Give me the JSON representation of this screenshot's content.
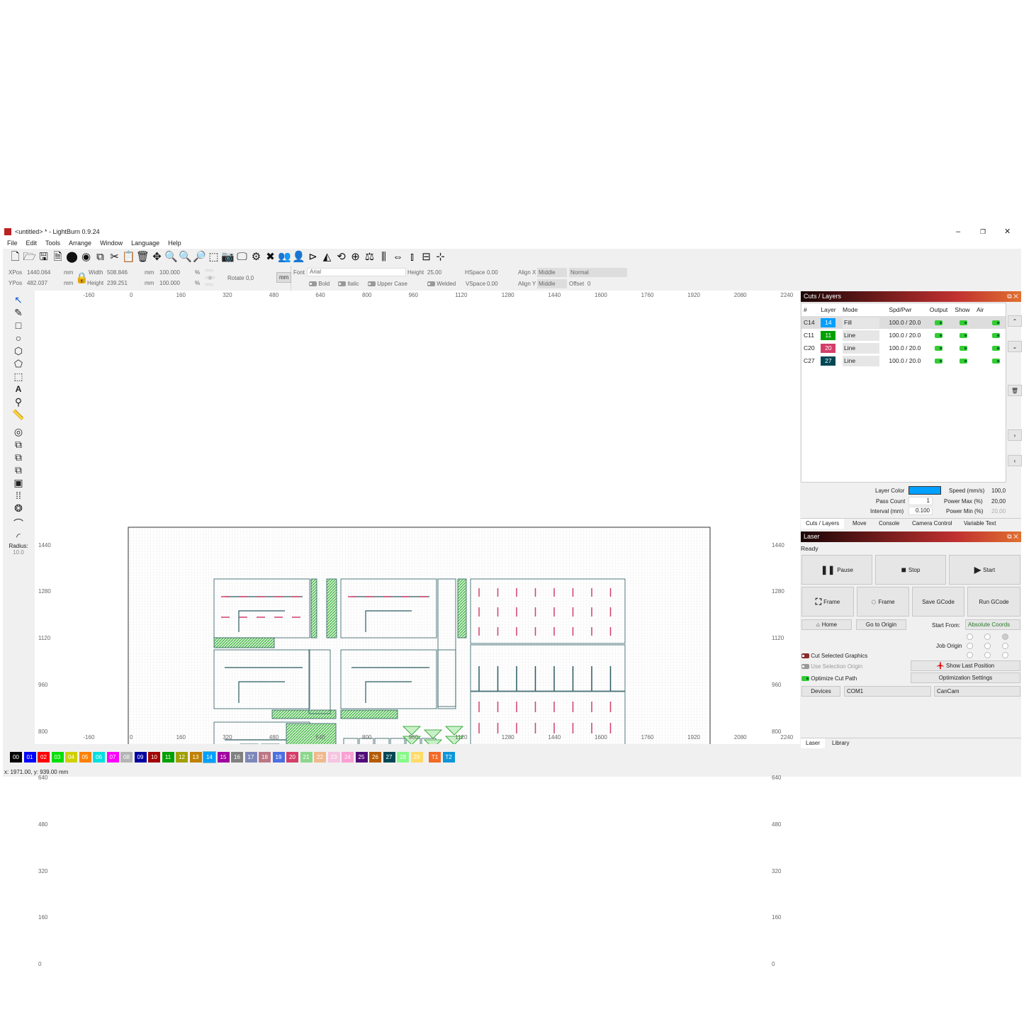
{
  "window": {
    "title": "<untitled> * - LightBurn 0.9.24",
    "min": "–",
    "max": "❐",
    "close": "✕"
  },
  "menu": [
    "File",
    "Edit",
    "Tools",
    "Arrange",
    "Window",
    "Language",
    "Help"
  ],
  "toolbar_icons": [
    "new-file-icon",
    "open-icon",
    "save-icon",
    "save-as-icon",
    "import-icon",
    "export-icon",
    "copy-icon",
    "cut-icon",
    "paste-icon",
    "delete-icon",
    "move-icon",
    "zoom-in-icon",
    "zoom-out-icon",
    "zoom-fit-icon",
    "zoom-selection-icon",
    "camera-icon",
    "monitor-icon",
    "settings-icon",
    "tools-icon",
    "group-icon",
    "ungroup-icon",
    "mirror-h-icon",
    "mirror-v-icon",
    "rotate-icon",
    "align-center-icon",
    "align-bottom-icon",
    "distribute-icon",
    "align-h-icon",
    "align-v-icon",
    "distribute-space-icon",
    "snap-icon"
  ],
  "props": {
    "xpos_label": "XPos",
    "xpos": "1440.064",
    "ypos_label": "YPos",
    "ypos": "482.037",
    "unit": "mm",
    "width_label": "Width",
    "width": "508.846",
    "height_label": "Height",
    "height": "239.251",
    "scale_w": "100.000",
    "scale_h": "100.000",
    "pct": "%",
    "rotate_label": "Rotate",
    "rotate": "0,0",
    "mm_button": "mm",
    "font_label": "Font",
    "font": "Arial",
    "text_height_label": "Height",
    "text_height": "25.00",
    "hspace_label": "HSpace",
    "hspace": "0.00",
    "vspace_label": "VSpace",
    "vspace": "0.00",
    "alignx_label": "Align X",
    "alignx": "Middle",
    "aligny_label": "Align Y",
    "aligny": "Middle",
    "style": "Normal",
    "offset_label": "Offset",
    "offset": "0",
    "bold": "Bold",
    "italic": "Italic",
    "upper": "Upper Case",
    "welded": "Welded"
  },
  "left_tools": {
    "radius_label": "Radius:",
    "radius": "10.0"
  },
  "ruler": {
    "top": [
      "-160",
      "0",
      "160",
      "320",
      "480",
      "640",
      "800",
      "960",
      "1120",
      "1280",
      "1440",
      "1600",
      "1760",
      "1920",
      "2080",
      "2240"
    ],
    "left": [
      "1440",
      "1280",
      "1120",
      "960",
      "800",
      "640",
      "480",
      "320",
      "160",
      "0"
    ]
  },
  "cuts": {
    "title": "Cuts / Layers",
    "headers": [
      "#",
      "Layer",
      "Mode",
      "Spd/Pwr",
      "Output",
      "Show",
      "Air"
    ],
    "rows": [
      {
        "id": "C14",
        "layer": "14",
        "color": "#00a0ff",
        "mode": "Fill",
        "spdpwr": "100.0 / 20.0"
      },
      {
        "id": "C11",
        "layer": "11",
        "color": "#00a000",
        "mode": "Line",
        "spdpwr": "100.0 / 20.0"
      },
      {
        "id": "C20",
        "layer": "20",
        "color": "#d33f6a",
        "mode": "Line",
        "spdpwr": "100.0 / 20.0"
      },
      {
        "id": "C27",
        "layer": "27",
        "color": "#004754",
        "mode": "Line",
        "spdpwr": "100.0 / 20.0"
      }
    ],
    "layer_color_label": "Layer Color",
    "layer_color": "#00a0ff",
    "pass_count_label": "Pass Count",
    "pass_count": "1",
    "interval_label": "Interval (mm)",
    "interval": "0.100",
    "speed_label": "Speed (mm/s)",
    "speed": "100,0",
    "pmax_label": "Power Max (%)",
    "pmax": "20,00",
    "pmin_label": "Power Min (%)",
    "pmin": "20,00",
    "tabs": [
      "Cuts / Layers",
      "Move",
      "Console",
      "Camera Control",
      "Variable Text"
    ]
  },
  "laser": {
    "title": "Laser",
    "status": "Ready",
    "pause": "Pause",
    "stop": "Stop",
    "start": "Start",
    "frame1": "Frame",
    "frame2": "Frame",
    "save_gcode": "Save GCode",
    "run_gcode": "Run GCode",
    "home": "Home",
    "go_origin": "Go to Origin",
    "start_from_label": "Start From:",
    "start_from": "Absolute Coords",
    "job_origin_label": "Job Origin",
    "cut_selected": "Cut Selected Graphics",
    "use_selection": "Use Selection Origin",
    "optimize": "Optimize Cut Path",
    "show_last": "Show Last Position",
    "opt_settings": "Optimization Settings",
    "devices": "Devices",
    "port": "COM1",
    "device": "CanCam",
    "tabs": [
      "Laser",
      "Library"
    ]
  },
  "palette": [
    [
      "00",
      "#000000"
    ],
    [
      "01",
      "#0000ff"
    ],
    [
      "02",
      "#ff0000"
    ],
    [
      "03",
      "#00e000"
    ],
    [
      "04",
      "#d0d000"
    ],
    [
      "05",
      "#ff8000"
    ],
    [
      "06",
      "#00e0e0"
    ],
    [
      "07",
      "#ff00ff"
    ],
    [
      "08",
      "#b4b4b4"
    ],
    [
      "09",
      "#0000a0"
    ],
    [
      "10",
      "#a00000"
    ],
    [
      "11",
      "#00a000"
    ],
    [
      "12",
      "#a0a000"
    ],
    [
      "13",
      "#c08000"
    ],
    [
      "14",
      "#00a0ff"
    ],
    [
      "15",
      "#a000a0"
    ],
    [
      "16",
      "#808080"
    ],
    [
      "17",
      "#7d87b9"
    ],
    [
      "18",
      "#bb7784"
    ],
    [
      "19",
      "#4a6fe3"
    ],
    [
      "20",
      "#d33f6a"
    ],
    [
      "21",
      "#8cd78c"
    ],
    [
      "22",
      "#f0b98d"
    ],
    [
      "23",
      "#f6c4e1"
    ],
    [
      "24",
      "#fa9ed4"
    ],
    [
      "25",
      "#500a78"
    ],
    [
      "26",
      "#b45a00"
    ],
    [
      "27",
      "#004754"
    ],
    [
      "28",
      "#86fa88"
    ],
    [
      "29",
      "#ffdb66"
    ],
    [
      "T1",
      "#f36926"
    ],
    [
      "T2",
      "#0c96d9"
    ]
  ],
  "status": "x: 1971.00, y: 939.00 mm"
}
